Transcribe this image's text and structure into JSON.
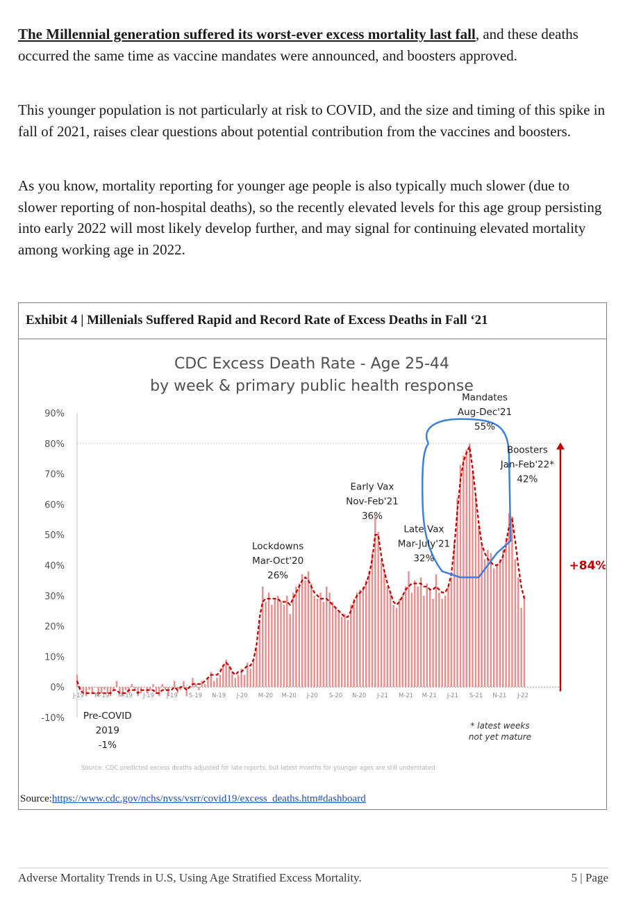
{
  "paragraphs": [
    {
      "lead": "The Millennial generation suffered its worst-ever excess mortality last fall",
      "text": ", and these deaths occurred the same time as vaccine mandates were announced, and boosters approved."
    },
    {
      "lead": "",
      "text": "This younger population is not particularly at risk to COVID, and the size and timing of this spike in fall of 2021, raises clear questions about potential contribution from the vaccines and boosters."
    },
    {
      "lead": "",
      "text": "As you know, mortality reporting for younger age people is also typically much slower (due to slower reporting of non-hospital deaths), so the recently elevated levels for this age group persisting into early 2022 will most likely develop further, and may signal for continuing elevated mortality among working age in 2022."
    }
  ],
  "exhibit": {
    "heading": "Exhibit 4 | Millenials Suffered Rapid and Record Rate of Excess Deaths in Fall ‘21",
    "source_label": "Source:",
    "source_link": "https://www.cdc.gov/nchs/nvss/vsrr/covid19/excess_deaths.htm#dashboard"
  },
  "chart_data": {
    "type": "bar",
    "title": "CDC Excess Death Rate - Age 25-44",
    "subtitle": "by week & primary public health response",
    "xlabel": "",
    "ylabel": "",
    "ylim": [
      -10,
      90
    ],
    "y_ticks": [
      "90%",
      "80%",
      "70%",
      "60%",
      "50%",
      "40%",
      "30%",
      "20%",
      "10%",
      "0%",
      "-10%"
    ],
    "x_ticks": [
      "J-19",
      "M-19",
      "M-19",
      "J-19",
      "J-19",
      "S-19",
      "N-19",
      "J-20",
      "M-20",
      "M-20",
      "J-20",
      "S-20",
      "N-20",
      "J-21",
      "M-21",
      "M-21",
      "J-21",
      "S-21",
      "N-21",
      "J-22"
    ],
    "bar_color": "#ee8a8a",
    "trend_color": "#c00000",
    "weekly_values": [
      4,
      -1,
      -2,
      -3,
      -1,
      -2,
      0,
      -3,
      -2,
      -1,
      -2,
      -3,
      -1,
      2,
      -2,
      -3,
      -1,
      -2,
      1,
      -1,
      -3,
      -2,
      0,
      -2,
      -1,
      1,
      -2,
      -3,
      1,
      -1,
      -3,
      0,
      2,
      -2,
      -1,
      2,
      -3,
      0,
      3,
      1,
      -1,
      2,
      1,
      3,
      5,
      2,
      3,
      4,
      7,
      9,
      7,
      5,
      3,
      4,
      6,
      4,
      8,
      6,
      9,
      13,
      22,
      33,
      28,
      31,
      27,
      29,
      30,
      28,
      27,
      30,
      24,
      31,
      33,
      34,
      37,
      35,
      38,
      34,
      30,
      29,
      31,
      28,
      33,
      31,
      28,
      26,
      25,
      23,
      24,
      22,
      27,
      29,
      31,
      32,
      33,
      35,
      38,
      44,
      56,
      51,
      42,
      38,
      33,
      31,
      27,
      26,
      29,
      30,
      33,
      38,
      31,
      35,
      33,
      36,
      30,
      34,
      32,
      29,
      37,
      31,
      29,
      30,
      33,
      36,
      48,
      62,
      73,
      76,
      78,
      80,
      71,
      63,
      53,
      47,
      42,
      45,
      44,
      39,
      40,
      42,
      45,
      49,
      57,
      56,
      42,
      36,
      26,
      30
    ],
    "trend_values": [
      2,
      -1,
      -2,
      -2,
      -2,
      -2,
      -2,
      -2,
      -2,
      -2,
      -2,
      -2,
      -1,
      -1,
      -2,
      -2,
      -2,
      -1,
      -1,
      -1,
      -2,
      -1,
      -1,
      -1,
      -1,
      -1,
      -2,
      -2,
      -1,
      -1,
      -1,
      -1,
      0,
      -1,
      0,
      0,
      -1,
      0,
      1,
      1,
      1,
      1,
      2,
      3,
      4,
      4,
      4,
      5,
      7,
      8,
      7,
      5,
      4,
      5,
      5,
      6,
      7,
      7,
      9,
      14,
      23,
      28,
      29,
      29,
      29,
      29,
      29,
      28,
      28,
      28,
      27,
      29,
      31,
      33,
      35,
      36,
      35,
      33,
      31,
      30,
      29,
      29,
      29,
      28,
      27,
      26,
      25,
      24,
      23,
      23,
      25,
      28,
      30,
      31,
      32,
      34,
      37,
      42,
      50,
      50,
      43,
      38,
      34,
      31,
      28,
      27,
      28,
      30,
      32,
      33,
      34,
      34,
      34,
      34,
      33,
      33,
      32,
      32,
      33,
      32,
      31,
      31,
      33,
      37,
      46,
      58,
      68,
      74,
      77,
      79,
      72,
      63,
      54,
      47,
      44,
      42,
      41,
      40,
      40,
      41,
      43,
      47,
      53,
      55,
      48,
      40,
      33,
      29
    ],
    "annotations": [
      {
        "lines": [
          "Pre-COVID",
          "2019",
          "-1%"
        ],
        "at_week": 10
      },
      {
        "lines": [
          "Lockdowns",
          "Mar-Oct'20",
          "26%"
        ],
        "at_week": 66
      },
      {
        "lines": [
          "Early Vax",
          "Nov-Feb'21",
          "36%"
        ],
        "at_week": 97
      },
      {
        "lines": [
          "Late Vax",
          "Mar-July'21",
          "32%"
        ],
        "at_week": 114
      },
      {
        "lines": [
          "Mandates",
          "Aug-Dec'21",
          "55%"
        ],
        "at_week": 134
      },
      {
        "lines": [
          "Boosters",
          "Jan-Feb'22*",
          "42%"
        ],
        "at_week": 148
      }
    ],
    "change_label": "+84%",
    "change_color": "#c00000",
    "footnote": [
      "* latest weeks",
      "not yet mature"
    ],
    "chart_source_note": "Source: CDC predicted excess deaths adjusted for late reports, but latest months for younger ages are still understated",
    "highlight_color": "#3b7fdc"
  },
  "footer": {
    "left": "Adverse Mortality Trends in U.S, Using Age Stratified Excess Mortality.",
    "right": "5 | Page"
  }
}
